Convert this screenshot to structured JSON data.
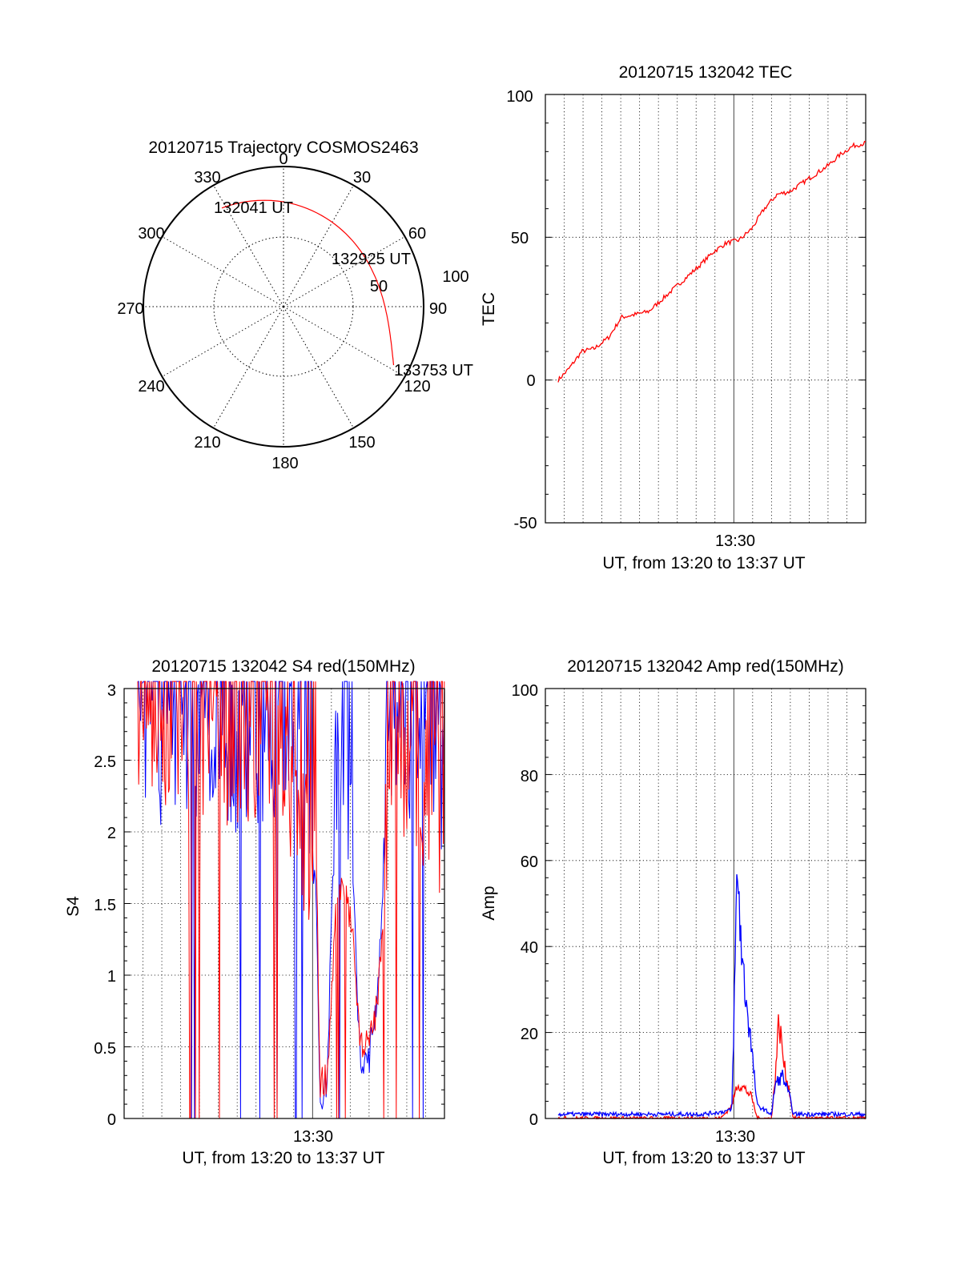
{
  "colors": {
    "red": "#ff0000",
    "blue": "#0000ff",
    "axis": "#000000",
    "grid": "#000000"
  },
  "polar": {
    "title": "20120715 Trajectory COSMOS2463",
    "azimuth_labels": [
      "0",
      "30",
      "60",
      "90",
      "120",
      "150",
      "180",
      "210",
      "240",
      "270",
      "300",
      "330"
    ],
    "ring_labels": [
      "50",
      "100"
    ],
    "start_label": "132041 UT",
    "mid_label": "132925 UT",
    "end_label": "133753 UT",
    "chart_data": {
      "type": "scatter",
      "projection": "polar (azimuth clockwise from north, radius = zenith distance)",
      "rlim": [
        0,
        100
      ],
      "points": [
        {
          "label": "132041 UT",
          "azimuth_deg": 328,
          "r": 83
        },
        {
          "label": "132925 UT",
          "azimuth_deg": 62,
          "r": 68
        },
        {
          "label": "133753 UT",
          "azimuth_deg": 118,
          "r": 89
        }
      ]
    }
  },
  "tec": {
    "title": "20120715 132042 TEC",
    "ylabel": "TEC",
    "xtick": "13:30",
    "xlabel": "UT, from 13:20 to 13:37 UT",
    "yticks": [
      "100",
      "50",
      "0",
      "-50"
    ],
    "chart_data": {
      "type": "line",
      "xlim_min": [
        0,
        17
      ],
      "ylim": [
        -50,
        100
      ],
      "series": [
        {
          "color": "#ff0000",
          "x": [
            0.0,
            0.6,
            1.3,
            2.0,
            2.8,
            3.5,
            4.3,
            5.0,
            5.7,
            6.4,
            7.1,
            7.8,
            8.6,
            9.3,
            10.0,
            10.7,
            11.4,
            12.1,
            12.8,
            13.5,
            14.2,
            14.9,
            15.6,
            16.3,
            17.0
          ],
          "y": [
            0,
            4,
            10,
            11,
            15,
            22,
            23,
            24,
            28,
            32,
            36,
            40,
            45,
            48,
            49,
            53,
            60,
            65,
            66,
            69,
            72,
            75,
            79,
            82,
            83
          ]
        }
      ]
    }
  },
  "s4": {
    "title": "20120715 132042 S4 red(150MHz)",
    "ylabel": "S4",
    "xtick": "13:30",
    "xlabel": "UT, from 13:20 to 13:37 UT",
    "yticks": [
      "3",
      "2.5",
      "2",
      "1.5",
      "1",
      "0.5",
      "0"
    ],
    "chart_data": {
      "type": "line",
      "xlim_min": [
        0,
        17
      ],
      "ylim": [
        0,
        3
      ],
      "series": [
        {
          "color": "#0000ff",
          "note": "saturated near 3 with dropouts 13:20-13:30; minima ~0.12 at 13:30 and ~0.35 at 13:32",
          "x": [
            0.0,
            1.5,
            3.0,
            4.5,
            6.0,
            7.5,
            9.0,
            9.9,
            10.1,
            10.5,
            11.0,
            11.5,
            12.0,
            12.3,
            12.8,
            13.3,
            14.0,
            15.0,
            16.0,
            17.0
          ],
          "y": [
            2.8,
            2.6,
            2.7,
            2.5,
            2.6,
            2.7,
            2.4,
            1.6,
            0.15,
            0.25,
            2.6,
            2.8,
            1.5,
            0.45,
            0.4,
            0.9,
            2.8,
            2.7,
            2.6,
            2.4
          ]
        },
        {
          "color": "#ff0000",
          "note": "partly overlapping blue; minima ~0.2 at 13:30 and ~0.45 at 13:32",
          "x": [
            0.0,
            1.5,
            3.0,
            4.5,
            6.0,
            7.5,
            9.0,
            9.9,
            10.1,
            10.5,
            11.0,
            11.5,
            12.0,
            12.3,
            12.8,
            13.3,
            14.0,
            15.0,
            16.0,
            17.0
          ],
          "y": [
            2.9,
            2.7,
            2.8,
            2.6,
            2.5,
            2.6,
            2.0,
            1.8,
            0.25,
            0.3,
            1.5,
            1.6,
            1.2,
            0.55,
            0.5,
            0.8,
            2.4,
            2.6,
            2.3,
            2.0
          ]
        }
      ]
    }
  },
  "amp": {
    "title": "20120715 132042 Amp red(150MHz)",
    "ylabel": "Amp",
    "xtick": "13:30",
    "xlabel": "UT, from 13:20 to 13:37 UT",
    "yticks": [
      "100",
      "80",
      "60",
      "40",
      "20",
      "0"
    ],
    "chart_data": {
      "type": "line",
      "xlim_min": [
        0,
        17
      ],
      "ylim": [
        0,
        100
      ],
      "series": [
        {
          "color": "#0000ff",
          "x": [
            0.0,
            4.0,
            8.0,
            9.0,
            9.6,
            9.9,
            10.2,
            10.6,
            11.0,
            11.8,
            12.0,
            12.4,
            12.8,
            13.0,
            14.0,
            17.0
          ],
          "y": [
            1,
            1,
            1,
            1.5,
            2,
            58,
            35,
            20,
            3,
            1,
            8,
            10,
            5,
            1,
            1,
            1
          ]
        },
        {
          "color": "#ff0000",
          "x": [
            0.0,
            9.0,
            9.6,
            9.9,
            10.3,
            10.7,
            11.0,
            11.8,
            12.0,
            12.2,
            12.5,
            12.8,
            13.0,
            17.0
          ],
          "y": [
            0,
            0,
            3,
            8,
            7,
            5,
            0,
            0,
            10,
            23,
            12,
            6,
            0,
            0
          ]
        }
      ]
    }
  }
}
